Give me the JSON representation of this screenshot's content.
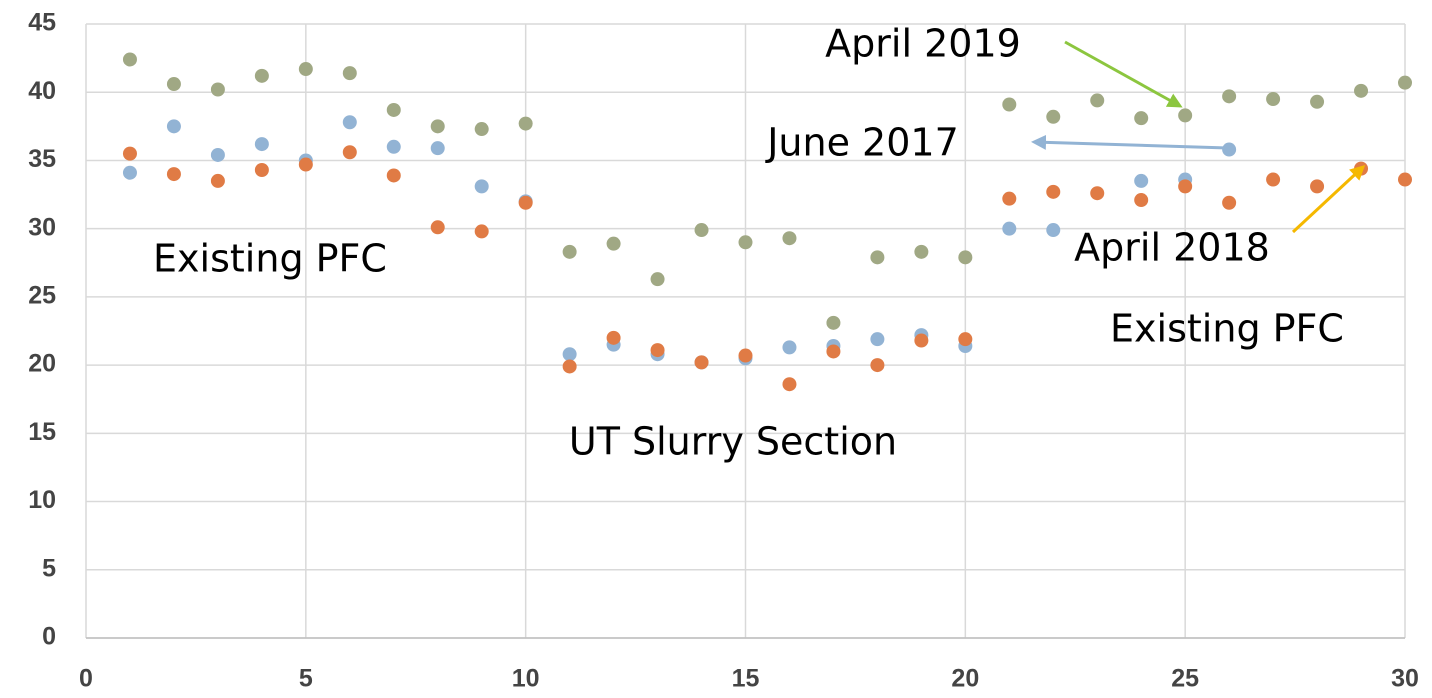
{
  "chart_data": {
    "type": "scatter",
    "x": [
      1,
      2,
      3,
      4,
      5,
      6,
      7,
      8,
      9,
      10,
      11,
      12,
      13,
      14,
      15,
      16,
      17,
      18,
      19,
      20,
      21,
      22,
      23,
      24,
      25,
      26,
      27,
      28,
      29,
      30
    ],
    "series": [
      {
        "name": "April 2019",
        "color": "#a0a884",
        "values": [
          42.4,
          40.6,
          40.2,
          41.2,
          41.7,
          41.4,
          38.7,
          37.5,
          37.3,
          37.7,
          28.3,
          28.9,
          26.3,
          29.9,
          29.0,
          29.3,
          23.1,
          27.9,
          28.3,
          27.9,
          39.1,
          38.2,
          39.4,
          38.1,
          38.3,
          39.7,
          39.5,
          39.3,
          40.1,
          40.7
        ]
      },
      {
        "name": "June 2017",
        "color": "#92b3d4",
        "values": [
          34.1,
          37.5,
          35.4,
          36.2,
          35.0,
          37.8,
          36.0,
          35.9,
          33.1,
          32.0,
          20.8,
          21.5,
          20.8,
          20.2,
          20.5,
          21.3,
          21.4,
          21.9,
          22.2,
          21.4,
          30.0,
          29.9,
          null,
          33.5,
          33.6,
          35.8,
          null,
          null,
          null,
          null
        ]
      },
      {
        "name": "April 2018",
        "color": "#e07b45",
        "values": [
          35.5,
          34.0,
          33.5,
          34.3,
          34.7,
          35.6,
          33.9,
          30.1,
          29.8,
          31.9,
          19.9,
          22.0,
          21.1,
          20.2,
          20.7,
          18.6,
          21.0,
          20.0,
          21.8,
          21.9,
          32.2,
          32.7,
          32.6,
          32.1,
          33.1,
          31.9,
          33.6,
          33.1,
          34.4,
          33.6
        ]
      }
    ],
    "annotations": [
      "Existing PFC",
      "Existing PFC",
      "UT Slurry Section"
    ],
    "xlim": [
      0,
      30
    ],
    "xticks": [
      0,
      5,
      10,
      15,
      20,
      25,
      30
    ],
    "ylim": [
      0,
      45
    ],
    "yticks": [
      0,
      5,
      10,
      15,
      20,
      25,
      30,
      35,
      40,
      45
    ],
    "grid": true
  }
}
